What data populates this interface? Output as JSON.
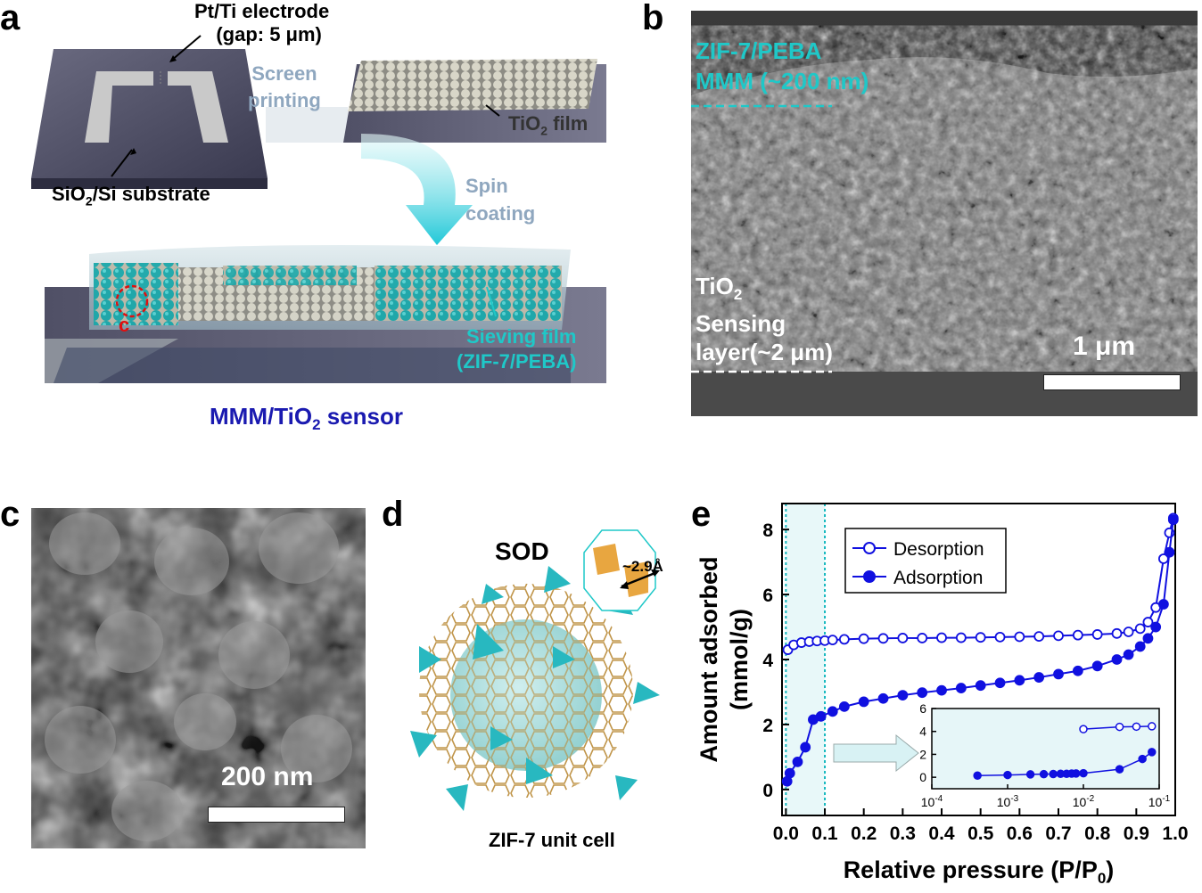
{
  "panels": {
    "a": {
      "letter": "a",
      "electrode_label_line1": "Pt/Ti electrode",
      "electrode_label_line2": "(gap: 5 μm)",
      "screen_line1": "Screen",
      "screen_line2": "printing",
      "tio2_film": "TiO",
      "tio2_film_sub": "2",
      "tio2_film_tail": " film",
      "substrate": "SiO",
      "substrate_sub": "2",
      "substrate_tail": "/Si substrate",
      "spin_line1": "Spin",
      "spin_line2": "coating",
      "c_marker": "c",
      "sieving_line1": "Sieving film",
      "sieving_line2": "(ZIF-7/PEBA)",
      "sensor_prefix": "MMM/TiO",
      "sensor_sub": "2",
      "sensor_tail": " sensor"
    },
    "b": {
      "letter": "b",
      "mmm_line1": "ZIF-7/PEBA",
      "mmm_line2": "MMM (~200 nm)",
      "tio2_line1": "TiO",
      "tio2_sub": "2",
      "tio2_line2": "Sensing",
      "tio2_line3": "layer(~2 μm)",
      "scale": "1 μm"
    },
    "c": {
      "letter": "c",
      "scale": "200 nm"
    },
    "d": {
      "letter": "d",
      "sod": "SOD",
      "aperture": "~2.9Å",
      "caption": "ZIF-7 unit cell"
    },
    "e": {
      "letter": "e"
    }
  },
  "colors": {
    "cyan": "#1fc8c8",
    "navy": "#1a1ab0",
    "series_blue": "#1010e0",
    "gray_label": "#8fa7bf",
    "red_marker": "#e01010"
  },
  "chart_data": {
    "type": "line",
    "xlabel": "Relative pressure (P/P0)",
    "ylabel": "Amount adsorbed (mmol/g)",
    "xlim": [
      -0.01,
      1.0
    ],
    "ylim": [
      -0.8,
      8.8
    ],
    "xticks": [
      "0.0",
      "0.1",
      "0.2",
      "0.3",
      "0.4",
      "0.5",
      "0.6",
      "0.7",
      "0.8",
      "0.9",
      "1.0"
    ],
    "yticks": [
      "0",
      "2",
      "4",
      "6",
      "8"
    ],
    "legend_position": "top-left",
    "highlight_region_x": [
      0.0,
      0.1
    ],
    "series": [
      {
        "name": "Desorption",
        "marker": "open-circle",
        "x": [
          0.005,
          0.02,
          0.04,
          0.06,
          0.08,
          0.1,
          0.12,
          0.15,
          0.2,
          0.25,
          0.3,
          0.35,
          0.4,
          0.45,
          0.5,
          0.55,
          0.6,
          0.65,
          0.7,
          0.75,
          0.8,
          0.85,
          0.88,
          0.91,
          0.93,
          0.95,
          0.97,
          0.985,
          0.995
        ],
        "y": [
          4.3,
          4.45,
          4.52,
          4.55,
          4.57,
          4.58,
          4.6,
          4.62,
          4.64,
          4.65,
          4.66,
          4.66,
          4.67,
          4.67,
          4.68,
          4.69,
          4.7,
          4.71,
          4.73,
          4.75,
          4.77,
          4.8,
          4.85,
          4.95,
          5.15,
          5.6,
          7.1,
          7.9,
          8.35
        ]
      },
      {
        "name": "Adsorption",
        "marker": "filled-circle",
        "x": [
          0.003,
          0.01,
          0.03,
          0.05,
          0.07,
          0.09,
          0.12,
          0.15,
          0.2,
          0.25,
          0.3,
          0.35,
          0.4,
          0.45,
          0.5,
          0.55,
          0.6,
          0.65,
          0.7,
          0.75,
          0.8,
          0.85,
          0.88,
          0.91,
          0.93,
          0.95,
          0.97,
          0.985,
          0.995
        ],
        "y": [
          0.25,
          0.5,
          0.85,
          1.3,
          2.15,
          2.25,
          2.4,
          2.55,
          2.7,
          2.8,
          2.9,
          2.98,
          3.05,
          3.12,
          3.2,
          3.28,
          3.36,
          3.45,
          3.55,
          3.65,
          3.8,
          4.0,
          4.15,
          4.4,
          4.65,
          5.0,
          5.7,
          7.3,
          8.3
        ]
      }
    ],
    "inset": {
      "xscale": "log",
      "xlim": [
        0.0001,
        0.1
      ],
      "ylim": [
        -1,
        6
      ],
      "xticks": [
        "10-4",
        "10-3",
        "10-2",
        "10-1"
      ],
      "yticks": [
        "0",
        "2",
        "4",
        "6"
      ],
      "series": [
        {
          "marker": "open-circle",
          "x": [
            0.01,
            0.03,
            0.05,
            0.08
          ],
          "y": [
            4.2,
            4.4,
            4.42,
            4.45
          ]
        },
        {
          "marker": "filled-circle",
          "x": [
            0.0004,
            0.001,
            0.002,
            0.003,
            0.004,
            0.005,
            0.006,
            0.007,
            0.008,
            0.01,
            0.03,
            0.06,
            0.08
          ],
          "y": [
            0.15,
            0.2,
            0.25,
            0.27,
            0.28,
            0.3,
            0.3,
            0.32,
            0.33,
            0.35,
            0.7,
            1.6,
            2.2
          ]
        }
      ]
    }
  }
}
